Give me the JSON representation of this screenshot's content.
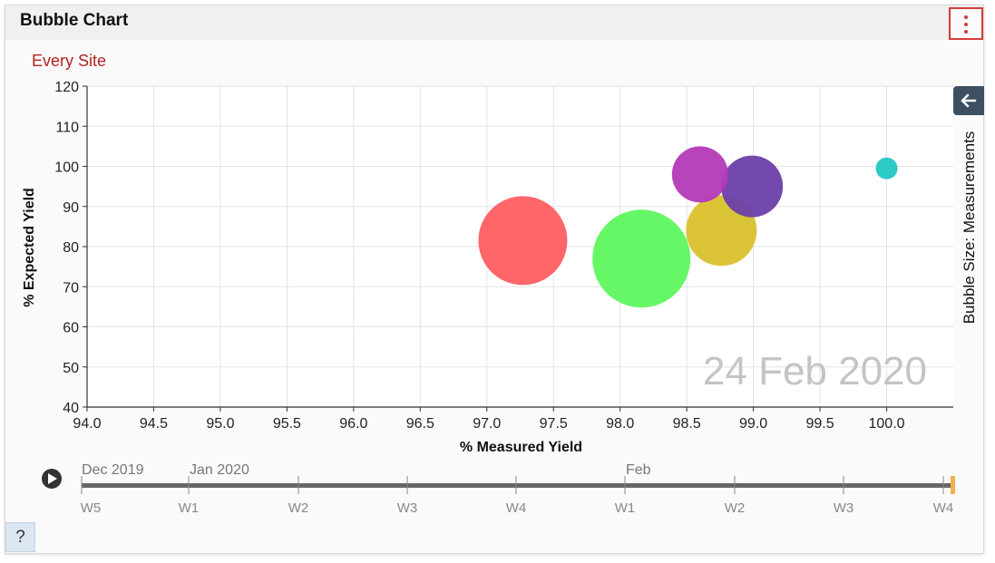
{
  "panel": {
    "title": "Bubble Chart",
    "menu_icon": "kebab-menu-icon",
    "subtitle": "Every Site",
    "side_tab_icon": "arrow-left-icon",
    "side_label": "Bubble Size: Measurements",
    "help_label": "?"
  },
  "colors": {
    "accent_red": "#d43b3b",
    "subtitle": "#b22222",
    "side_tab": "#3c4f63"
  },
  "chart_data": {
    "type": "scatter",
    "xlabel": "% Measured Yield",
    "ylabel": "% Expected Yield",
    "xlim": [
      94.0,
      100.5
    ],
    "ylim": [
      40,
      120
    ],
    "xticks": [
      "94.0",
      "94.5",
      "95.0",
      "95.5",
      "96.0",
      "96.5",
      "97.0",
      "97.5",
      "98.0",
      "98.5",
      "99.0",
      "99.5",
      "100.0"
    ],
    "yticks": [
      "40",
      "50",
      "60",
      "70",
      "80",
      "90",
      "100",
      "110",
      "120"
    ],
    "grid": true,
    "watermark": "24 Feb 2020",
    "bubble_size_label": "Bubble Size: Measurements",
    "series": [
      {
        "x": 97.27,
        "y": 81.5,
        "size": 49,
        "color": "#ff5e62"
      },
      {
        "x": 98.16,
        "y": 77,
        "size": 54,
        "color": "#5ef75e"
      },
      {
        "x": 98.76,
        "y": 84,
        "size": 39,
        "color": "#d9c02c"
      },
      {
        "x": 98.99,
        "y": 95,
        "size": 34,
        "color": "#6a3fa8"
      },
      {
        "x": 98.6,
        "y": 98,
        "size": 31,
        "color": "#b43ab8"
      },
      {
        "x": 100.0,
        "y": 99.5,
        "size": 12,
        "color": "#22c7c2"
      }
    ]
  },
  "timeline": {
    "play_icon": "play-icon",
    "months": [
      "Dec 2019",
      "Jan 2020",
      "Feb"
    ],
    "weeks": [
      "W5",
      "W1",
      "W2",
      "W3",
      "W4",
      "W1",
      "W2",
      "W3",
      "W4"
    ],
    "handle_color": "#f0b050",
    "position_fraction": 1.0
  }
}
